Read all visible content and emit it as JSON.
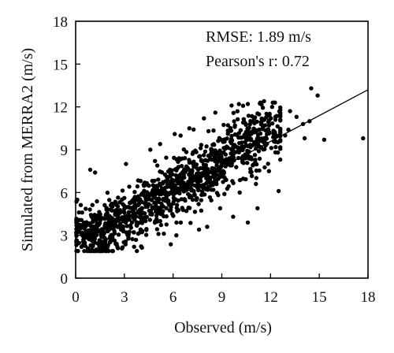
{
  "chart_data": {
    "type": "scatter",
    "title": "",
    "xlabel": "Observed (m/s)",
    "ylabel": "Simulated from MERRA2 (m/s)",
    "xlim": [
      0,
      18
    ],
    "ylim": [
      0,
      18
    ],
    "xticks": [
      0,
      3,
      6,
      9,
      12,
      15,
      18
    ],
    "yticks": [
      0,
      3,
      6,
      9,
      12,
      15,
      18
    ],
    "annotations": [
      "RMSE: 1.89 m/s",
      "Pearson's r: 0.72"
    ],
    "annotation_position": "top-right",
    "grid": false,
    "marker_color": "#000000",
    "fit_line": {
      "x": [
        0,
        18
      ],
      "y": [
        2.35,
        13.2
      ]
    },
    "n_points": 1200,
    "dense_points": [
      [
        0.5,
        3.1
      ],
      [
        0.8,
        2.6
      ],
      [
        1.2,
        3.4
      ],
      [
        1.5,
        2.9
      ],
      [
        2.0,
        3.8
      ],
      [
        2.5,
        3.3
      ],
      [
        3.0,
        4.4
      ],
      [
        3.5,
        3.9
      ],
      [
        4.0,
        4.8
      ],
      [
        4.5,
        5.6
      ],
      [
        5.0,
        5.1
      ],
      [
        5.5,
        6.2
      ],
      [
        6.0,
        5.8
      ],
      [
        6.5,
        6.9
      ],
      [
        7.0,
        6.4
      ],
      [
        7.5,
        7.6
      ],
      [
        8.0,
        7.1
      ],
      [
        8.5,
        8.3
      ],
      [
        9.0,
        7.9
      ],
      [
        9.5,
        8.8
      ],
      [
        10.0,
        9.4
      ],
      [
        10.5,
        8.9
      ],
      [
        11.0,
        10.3
      ],
      [
        11.5,
        9.8
      ],
      [
        12.0,
        10.9
      ]
    ],
    "outliers": [
      [
        0.1,
        5.5
      ],
      [
        0.4,
        4.6
      ],
      [
        0.9,
        7.6
      ],
      [
        1.2,
        7.4
      ],
      [
        1.0,
        2.0
      ],
      [
        1.4,
        1.9
      ],
      [
        2.6,
        2.1
      ],
      [
        3.6,
        2.2
      ],
      [
        3.1,
        8.0
      ],
      [
        4.6,
        9.0
      ],
      [
        5.2,
        9.4
      ],
      [
        6.1,
        10.1
      ],
      [
        7.0,
        10.5
      ],
      [
        7.9,
        11.2
      ],
      [
        8.6,
        11.6
      ],
      [
        9.6,
        12.1
      ],
      [
        10.6,
        12.2
      ],
      [
        11.6,
        12.4
      ],
      [
        12.1,
        12.0
      ],
      [
        12.3,
        11.1
      ],
      [
        13.2,
        11.7
      ],
      [
        13.6,
        11.3
      ],
      [
        14.0,
        10.8
      ],
      [
        14.5,
        13.3
      ],
      [
        14.9,
        12.8
      ],
      [
        14.4,
        11.0
      ],
      [
        15.3,
        9.7
      ],
      [
        17.7,
        9.8
      ],
      [
        14.1,
        9.8
      ],
      [
        13.1,
        10.4
      ],
      [
        12.5,
        6.1
      ],
      [
        11.2,
        4.9
      ],
      [
        10.6,
        3.9
      ],
      [
        9.7,
        4.3
      ],
      [
        8.9,
        4.9
      ],
      [
        8.1,
        3.6
      ],
      [
        7.6,
        3.4
      ],
      [
        6.2,
        3.0
      ],
      [
        5.1,
        3.1
      ],
      [
        4.1,
        3.3
      ],
      [
        12.6,
        9.6
      ],
      [
        12.9,
        10.0
      ],
      [
        11.9,
        7.5
      ],
      [
        11.1,
        6.6
      ],
      [
        10.1,
        6.0
      ]
    ]
  }
}
